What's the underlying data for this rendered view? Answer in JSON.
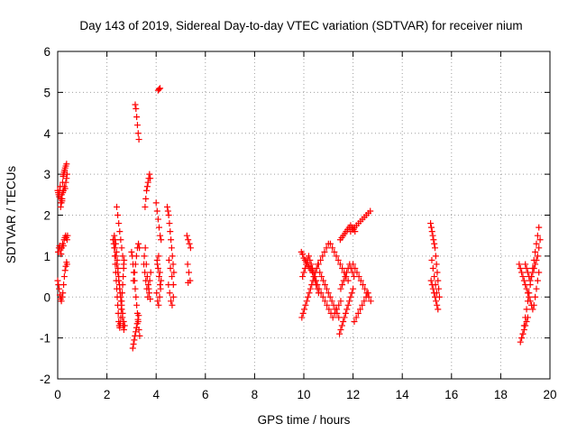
{
  "chart_data": {
    "type": "scatter",
    "title": "Day 143 of 2019, Sidereal Day-to-day VTEC variation (SDTVAR) for receiver nium",
    "xlabel": "GPS time / hours",
    "ylabel": "SDTVAR / TECUs",
    "xlim": [
      0,
      20
    ],
    "ylim": [
      -2,
      6
    ],
    "xticks": [
      "0",
      "2",
      "4",
      "6",
      "8",
      "10",
      "12",
      "14",
      "16",
      "18",
      "20"
    ],
    "yticks": [
      "-2",
      "-1",
      "0",
      "1",
      "2",
      "3",
      "4",
      "5",
      "6"
    ],
    "grid": true,
    "marker": "plus",
    "color": "#ff0000",
    "series": [
      {
        "x": [
          0.0,
          0.02,
          0.04,
          0.06,
          0.08,
          0.1,
          0.12,
          0.14,
          0.16,
          0.18,
          0.2,
          0.22,
          0.24,
          0.26,
          0.28,
          0.3,
          0.33,
          0.36,
          0.0,
          0.03,
          0.06,
          0.09,
          0.12,
          0.15,
          0.18,
          0.21,
          0.24,
          0.27,
          0.3,
          0.33,
          0.36,
          0.38,
          0.02,
          0.05,
          0.08,
          0.11,
          0.14,
          0.17,
          0.2,
          0.23,
          0.26,
          0.29,
          0.32,
          0.35,
          0.38,
          0.4,
          0.12,
          0.15,
          0.18,
          0.21,
          0.24,
          0.27,
          0.3,
          0.33,
          0.36,
          0.38,
          2.25,
          2.28,
          2.3,
          2.32,
          2.34,
          2.36,
          2.38,
          2.4,
          2.42,
          2.44,
          2.46,
          2.48,
          2.5,
          2.52,
          2.54,
          2.56,
          2.58,
          2.6,
          2.62,
          2.64,
          2.66,
          2.68,
          2.7,
          2.3,
          2.33,
          2.36,
          2.39,
          2.42,
          2.45,
          2.48,
          2.51,
          2.54,
          2.57,
          2.6,
          2.63,
          2.66,
          2.69,
          2.32,
          2.36,
          2.4,
          2.44,
          2.48,
          2.52,
          2.56,
          2.6,
          2.64,
          2.68,
          2.72,
          2.4,
          2.44,
          2.48,
          2.52,
          2.56,
          2.6,
          2.64,
          2.68,
          3.0,
          3.03,
          3.06,
          3.09,
          3.12,
          3.15,
          3.18,
          3.21,
          3.24,
          3.27,
          3.3,
          3.33,
          3.05,
          3.08,
          3.11,
          3.14,
          3.17,
          3.2,
          3.23,
          3.26,
          3.29,
          3.08,
          3.12,
          3.16,
          3.2,
          3.24,
          3.28,
          3.32,
          3.15,
          3.18,
          3.21,
          3.24,
          3.27,
          3.3,
          3.5,
          3.54,
          3.58,
          3.62,
          3.66,
          3.7,
          3.74,
          3.78,
          3.52,
          3.56,
          3.6,
          3.64,
          3.68,
          3.72,
          3.76,
          3.55,
          3.58,
          3.61,
          3.64,
          3.67,
          3.7,
          3.73,
          3.76,
          4.08,
          4.12,
          4.16,
          4.0,
          4.04,
          4.08,
          4.12,
          4.16,
          4.2,
          4.04,
          4.08,
          4.12,
          4.16,
          4.02,
          4.06,
          4.1,
          4.14,
          4.18,
          4.05,
          4.1,
          4.15,
          4.2,
          4.45,
          4.48,
          4.51,
          4.54,
          4.57,
          4.6,
          4.63,
          4.66,
          4.69,
          4.72,
          4.5,
          4.55,
          4.6,
          4.65,
          4.7,
          4.52,
          4.58,
          4.64,
          4.7,
          5.25,
          5.3,
          5.35,
          5.4,
          5.28,
          5.33,
          5.38,
          5.3,
          9.9,
          9.95,
          10.0,
          10.05,
          10.1,
          10.15,
          10.2,
          10.25,
          10.3,
          10.35,
          10.4,
          10.45,
          10.5,
          10.55,
          10.6,
          9.92,
          9.97,
          10.02,
          10.07,
          10.12,
          10.17,
          10.22,
          10.27,
          10.32,
          10.37,
          10.42,
          10.47,
          10.52,
          10.57,
          9.95,
          10.0,
          10.05,
          10.1,
          10.15,
          10.2,
          10.25,
          10.3,
          10.35,
          10.4,
          10.45,
          10.5,
          10.55,
          10.6,
          10.68,
          10.76,
          10.84,
          10.92,
          11.0,
          11.08,
          11.16,
          11.24,
          11.32,
          11.4,
          11.48,
          11.56,
          11.64,
          11.72,
          11.8,
          10.62,
          10.7,
          10.78,
          10.86,
          10.94,
          11.02,
          11.1,
          11.18,
          11.26,
          11.34,
          11.42,
          11.5,
          10.65,
          10.72,
          10.79,
          10.86,
          10.93,
          11.0,
          11.07,
          11.14,
          11.21,
          11.28,
          11.35,
          11.42,
          11.45,
          11.5,
          11.55,
          11.6,
          11.65,
          11.7,
          11.75,
          11.8,
          11.85,
          11.9,
          11.95,
          12.0,
          11.48,
          11.54,
          11.6,
          11.66,
          11.72,
          11.78,
          11.84,
          11.9,
          11.96,
          12.02,
          12.08,
          11.5,
          11.56,
          11.62,
          11.68,
          11.74,
          11.8,
          11.86,
          11.92,
          11.98,
          12.04,
          11.9,
          11.98,
          12.06,
          12.14,
          12.22,
          12.3,
          12.38,
          12.46,
          12.54,
          12.62,
          12.7,
          12.0,
          12.08,
          12.16,
          12.24,
          12.32,
          12.4,
          12.48,
          12.56,
          12.64,
          12.72,
          12.05,
          12.13,
          12.21,
          12.29,
          12.37,
          12.45,
          12.53,
          12.61,
          15.15,
          15.18,
          15.21,
          15.24,
          15.27,
          15.3,
          15.33,
          15.36,
          15.39,
          15.42,
          15.45,
          15.48,
          15.51,
          15.17,
          15.21,
          15.25,
          15.29,
          15.33,
          15.37,
          15.41,
          15.45,
          15.2,
          15.25,
          15.3,
          15.35,
          15.4,
          18.75,
          18.8,
          18.85,
          18.9,
          18.95,
          19.0,
          19.05,
          19.1,
          19.15,
          19.2,
          19.25,
          19.3,
          19.35,
          19.4,
          19.45,
          19.5,
          19.55,
          18.9,
          18.95,
          19.0,
          19.05,
          19.1,
          19.15,
          19.2,
          19.25,
          19.3,
          19.35,
          19.4,
          19.45,
          19.5,
          19.55,
          19.0,
          19.05,
          19.1,
          19.15,
          19.2,
          19.25,
          19.3,
          19.35,
          19.4,
          19.45,
          19.5,
          19.55,
          19.6,
          18.8,
          18.85,
          18.9,
          18.95,
          19.0,
          19.05,
          19.1
        ],
        "y": [
          2.6,
          2.55,
          2.5,
          2.45,
          2.6,
          2.7,
          2.4,
          2.3,
          2.5,
          2.35,
          2.8,
          2.95,
          3.0,
          3.05,
          3.1,
          3.15,
          3.2,
          3.25,
          0.4,
          0.3,
          0.2,
          0.05,
          -0.05,
          -0.1,
          0.0,
          0.1,
          0.3,
          0.5,
          0.65,
          0.75,
          0.85,
          0.8,
          1.1,
          1.2,
          1.25,
          1.15,
          1.05,
          1.2,
          1.3,
          1.25,
          1.4,
          1.45,
          1.5,
          1.45,
          1.4,
          1.5,
          2.2,
          2.3,
          2.4,
          2.55,
          2.6,
          2.7,
          2.65,
          2.8,
          2.9,
          3.0,
          1.4,
          1.3,
          1.2,
          1.0,
          0.8,
          0.6,
          0.4,
          0.2,
          0.0,
          -0.2,
          -0.4,
          -0.6,
          -0.7,
          -0.75,
          -0.65,
          -0.5,
          -0.3,
          -0.1,
          0.1,
          0.3,
          0.5,
          0.7,
          0.9,
          1.5,
          1.4,
          1.3,
          1.1,
          0.9,
          0.7,
          0.5,
          0.3,
          0.1,
          -0.1,
          -0.3,
          -0.5,
          -0.7,
          -0.8,
          1.2,
          1.0,
          0.8,
          0.6,
          0.4,
          0.2,
          0.0,
          -0.2,
          -0.4,
          -0.6,
          -0.7,
          2.2,
          2.0,
          1.8,
          1.6,
          1.4,
          1.2,
          1.0,
          0.8,
          1.1,
          1.0,
          0.8,
          0.6,
          0.4,
          0.2,
          0.0,
          -0.2,
          -0.4,
          -0.6,
          -0.8,
          -0.95,
          -1.25,
          -1.15,
          -1.05,
          -0.95,
          -0.85,
          -0.75,
          -0.65,
          -0.55,
          -0.45,
          0.4,
          0.6,
          0.8,
          1.0,
          1.2,
          1.3,
          1.2,
          4.7,
          4.6,
          4.4,
          4.2,
          4.0,
          3.85,
          0.8,
          0.6,
          0.4,
          0.2,
          0.0,
          0.2,
          0.4,
          0.6,
          1.0,
          1.2,
          0.8,
          0.5,
          0.3,
          0.1,
          -0.05,
          2.2,
          2.4,
          2.6,
          2.7,
          2.8,
          2.9,
          3.0,
          2.9,
          5.05,
          5.08,
          5.1,
          2.3,
          2.1,
          1.9,
          1.7,
          1.5,
          1.4,
          0.9,
          0.7,
          0.5,
          0.3,
          0.1,
          -0.1,
          -0.2,
          0.0,
          0.2,
          0.8,
          1.0,
          0.6,
          0.4,
          2.2,
          2.1,
          2.0,
          1.8,
          1.6,
          1.4,
          1.2,
          1.0,
          0.8,
          0.6,
          0.3,
          0.1,
          -0.1,
          -0.2,
          0.0,
          0.9,
          0.7,
          0.5,
          0.3,
          1.5,
          1.4,
          1.3,
          1.2,
          0.8,
          0.6,
          0.4,
          0.35,
          1.1,
          1.05,
          0.95,
          0.9,
          0.85,
          0.8,
          0.75,
          0.7,
          0.65,
          0.6,
          0.5,
          0.4,
          0.3,
          0.2,
          0.1,
          -0.5,
          -0.4,
          -0.3,
          -0.2,
          -0.1,
          0.0,
          0.1,
          0.2,
          0.3,
          0.4,
          0.5,
          0.6,
          0.7,
          0.8,
          0.5,
          0.6,
          0.7,
          0.8,
          0.9,
          1.0,
          0.9,
          0.8,
          0.7,
          0.6,
          0.5,
          0.4,
          0.3,
          0.8,
          0.9,
          1.0,
          1.1,
          1.2,
          1.3,
          1.3,
          1.2,
          1.1,
          1.0,
          0.9,
          0.8,
          0.7,
          0.6,
          0.5,
          0.4,
          0.2,
          0.1,
          0.0,
          -0.1,
          -0.2,
          -0.3,
          -0.4,
          -0.5,
          -0.4,
          -0.3,
          -0.2,
          -0.1,
          0.6,
          0.5,
          0.4,
          0.3,
          0.2,
          0.1,
          0.0,
          -0.1,
          -0.2,
          -0.3,
          -0.4,
          -0.5,
          -0.9,
          -0.8,
          -0.7,
          -0.6,
          -0.5,
          -0.4,
          -0.3,
          -0.2,
          -0.1,
          0.0,
          0.1,
          0.2,
          1.4,
          1.45,
          1.5,
          1.55,
          1.6,
          1.65,
          1.7,
          1.75,
          1.7,
          1.65,
          1.6,
          0.2,
          0.3,
          0.4,
          0.5,
          0.6,
          0.7,
          0.8,
          0.7,
          0.6,
          0.5,
          1.6,
          1.65,
          1.7,
          1.75,
          1.8,
          1.85,
          1.9,
          1.95,
          2.0,
          2.05,
          2.1,
          0.8,
          0.7,
          0.6,
          0.5,
          0.4,
          0.3,
          0.2,
          0.1,
          0.0,
          -0.1,
          -0.6,
          -0.5,
          -0.4,
          -0.3,
          -0.2,
          -0.1,
          0.0,
          0.1,
          1.8,
          1.7,
          1.6,
          1.5,
          1.4,
          1.3,
          1.2,
          1.0,
          0.8,
          0.6,
          0.4,
          0.2,
          0.0,
          0.4,
          0.3,
          0.2,
          0.1,
          0.0,
          -0.1,
          -0.2,
          -0.3,
          0.9,
          0.7,
          0.5,
          0.3,
          0.1,
          0.8,
          0.7,
          0.6,
          0.5,
          0.4,
          0.3,
          0.2,
          0.1,
          0.0,
          -0.1,
          -0.2,
          -0.3,
          -0.2,
          0.0,
          0.2,
          0.4,
          0.6,
          -0.9,
          -0.7,
          -0.5,
          -0.3,
          -0.1,
          0.1,
          0.3,
          0.5,
          0.7,
          0.9,
          1.1,
          1.3,
          1.5,
          1.7,
          0.8,
          0.7,
          0.6,
          0.5,
          0.4,
          0.5,
          0.6,
          0.7,
          0.8,
          0.9,
          1.0,
          1.2,
          1.4,
          -1.1,
          -1.0,
          -0.9,
          -0.8,
          -0.7,
          -0.6,
          -0.5
        ]
      }
    ]
  }
}
